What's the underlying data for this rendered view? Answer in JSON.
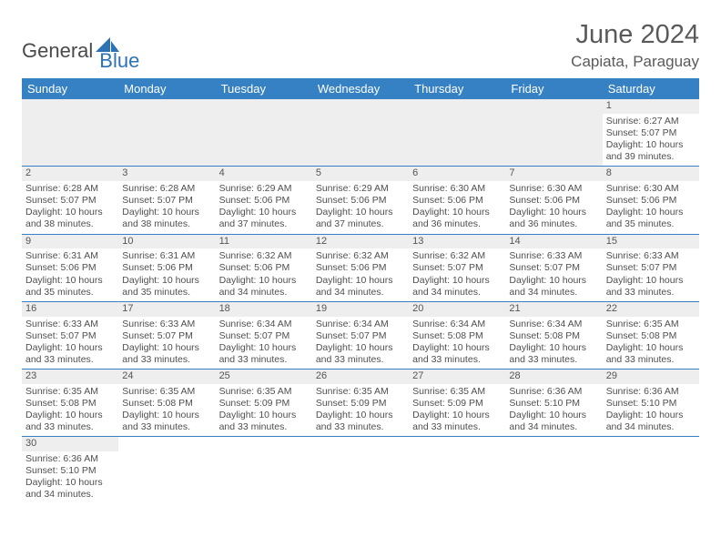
{
  "logo": {
    "text1": "General",
    "text2": "Blue"
  },
  "title": {
    "month": "June 2024",
    "location": "Capiata, Paraguay"
  },
  "colors": {
    "header_bg": "#3681c3",
    "header_text": "#ffffff",
    "numbar_bg": "#eeeeee",
    "border": "#3681c3",
    "body_text": "#4f4f4f",
    "logo_blue": "#2d72b5"
  },
  "weekdays": [
    "Sunday",
    "Monday",
    "Tuesday",
    "Wednesday",
    "Thursday",
    "Friday",
    "Saturday"
  ],
  "weeks": [
    [
      null,
      null,
      null,
      null,
      null,
      null,
      {
        "n": "1",
        "sr": "Sunrise: 6:27 AM",
        "ss": "Sunset: 5:07 PM",
        "d1": "Daylight: 10 hours",
        "d2": "and 39 minutes."
      }
    ],
    [
      {
        "n": "2",
        "sr": "Sunrise: 6:28 AM",
        "ss": "Sunset: 5:07 PM",
        "d1": "Daylight: 10 hours",
        "d2": "and 38 minutes."
      },
      {
        "n": "3",
        "sr": "Sunrise: 6:28 AM",
        "ss": "Sunset: 5:07 PM",
        "d1": "Daylight: 10 hours",
        "d2": "and 38 minutes."
      },
      {
        "n": "4",
        "sr": "Sunrise: 6:29 AM",
        "ss": "Sunset: 5:06 PM",
        "d1": "Daylight: 10 hours",
        "d2": "and 37 minutes."
      },
      {
        "n": "5",
        "sr": "Sunrise: 6:29 AM",
        "ss": "Sunset: 5:06 PM",
        "d1": "Daylight: 10 hours",
        "d2": "and 37 minutes."
      },
      {
        "n": "6",
        "sr": "Sunrise: 6:30 AM",
        "ss": "Sunset: 5:06 PM",
        "d1": "Daylight: 10 hours",
        "d2": "and 36 minutes."
      },
      {
        "n": "7",
        "sr": "Sunrise: 6:30 AM",
        "ss": "Sunset: 5:06 PM",
        "d1": "Daylight: 10 hours",
        "d2": "and 36 minutes."
      },
      {
        "n": "8",
        "sr": "Sunrise: 6:30 AM",
        "ss": "Sunset: 5:06 PM",
        "d1": "Daylight: 10 hours",
        "d2": "and 35 minutes."
      }
    ],
    [
      {
        "n": "9",
        "sr": "Sunrise: 6:31 AM",
        "ss": "Sunset: 5:06 PM",
        "d1": "Daylight: 10 hours",
        "d2": "and 35 minutes."
      },
      {
        "n": "10",
        "sr": "Sunrise: 6:31 AM",
        "ss": "Sunset: 5:06 PM",
        "d1": "Daylight: 10 hours",
        "d2": "and 35 minutes."
      },
      {
        "n": "11",
        "sr": "Sunrise: 6:32 AM",
        "ss": "Sunset: 5:06 PM",
        "d1": "Daylight: 10 hours",
        "d2": "and 34 minutes."
      },
      {
        "n": "12",
        "sr": "Sunrise: 6:32 AM",
        "ss": "Sunset: 5:06 PM",
        "d1": "Daylight: 10 hours",
        "d2": "and 34 minutes."
      },
      {
        "n": "13",
        "sr": "Sunrise: 6:32 AM",
        "ss": "Sunset: 5:07 PM",
        "d1": "Daylight: 10 hours",
        "d2": "and 34 minutes."
      },
      {
        "n": "14",
        "sr": "Sunrise: 6:33 AM",
        "ss": "Sunset: 5:07 PM",
        "d1": "Daylight: 10 hours",
        "d2": "and 34 minutes."
      },
      {
        "n": "15",
        "sr": "Sunrise: 6:33 AM",
        "ss": "Sunset: 5:07 PM",
        "d1": "Daylight: 10 hours",
        "d2": "and 33 minutes."
      }
    ],
    [
      {
        "n": "16",
        "sr": "Sunrise: 6:33 AM",
        "ss": "Sunset: 5:07 PM",
        "d1": "Daylight: 10 hours",
        "d2": "and 33 minutes."
      },
      {
        "n": "17",
        "sr": "Sunrise: 6:33 AM",
        "ss": "Sunset: 5:07 PM",
        "d1": "Daylight: 10 hours",
        "d2": "and 33 minutes."
      },
      {
        "n": "18",
        "sr": "Sunrise: 6:34 AM",
        "ss": "Sunset: 5:07 PM",
        "d1": "Daylight: 10 hours",
        "d2": "and 33 minutes."
      },
      {
        "n": "19",
        "sr": "Sunrise: 6:34 AM",
        "ss": "Sunset: 5:07 PM",
        "d1": "Daylight: 10 hours",
        "d2": "and 33 minutes."
      },
      {
        "n": "20",
        "sr": "Sunrise: 6:34 AM",
        "ss": "Sunset: 5:08 PM",
        "d1": "Daylight: 10 hours",
        "d2": "and 33 minutes."
      },
      {
        "n": "21",
        "sr": "Sunrise: 6:34 AM",
        "ss": "Sunset: 5:08 PM",
        "d1": "Daylight: 10 hours",
        "d2": "and 33 minutes."
      },
      {
        "n": "22",
        "sr": "Sunrise: 6:35 AM",
        "ss": "Sunset: 5:08 PM",
        "d1": "Daylight: 10 hours",
        "d2": "and 33 minutes."
      }
    ],
    [
      {
        "n": "23",
        "sr": "Sunrise: 6:35 AM",
        "ss": "Sunset: 5:08 PM",
        "d1": "Daylight: 10 hours",
        "d2": "and 33 minutes."
      },
      {
        "n": "24",
        "sr": "Sunrise: 6:35 AM",
        "ss": "Sunset: 5:08 PM",
        "d1": "Daylight: 10 hours",
        "d2": "and 33 minutes."
      },
      {
        "n": "25",
        "sr": "Sunrise: 6:35 AM",
        "ss": "Sunset: 5:09 PM",
        "d1": "Daylight: 10 hours",
        "d2": "and 33 minutes."
      },
      {
        "n": "26",
        "sr": "Sunrise: 6:35 AM",
        "ss": "Sunset: 5:09 PM",
        "d1": "Daylight: 10 hours",
        "d2": "and 33 minutes."
      },
      {
        "n": "27",
        "sr": "Sunrise: 6:35 AM",
        "ss": "Sunset: 5:09 PM",
        "d1": "Daylight: 10 hours",
        "d2": "and 33 minutes."
      },
      {
        "n": "28",
        "sr": "Sunrise: 6:36 AM",
        "ss": "Sunset: 5:10 PM",
        "d1": "Daylight: 10 hours",
        "d2": "and 34 minutes."
      },
      {
        "n": "29",
        "sr": "Sunrise: 6:36 AM",
        "ss": "Sunset: 5:10 PM",
        "d1": "Daylight: 10 hours",
        "d2": "and 34 minutes."
      }
    ],
    [
      {
        "n": "30",
        "sr": "Sunrise: 6:36 AM",
        "ss": "Sunset: 5:10 PM",
        "d1": "Daylight: 10 hours",
        "d2": "and 34 minutes."
      },
      null,
      null,
      null,
      null,
      null,
      null
    ]
  ]
}
